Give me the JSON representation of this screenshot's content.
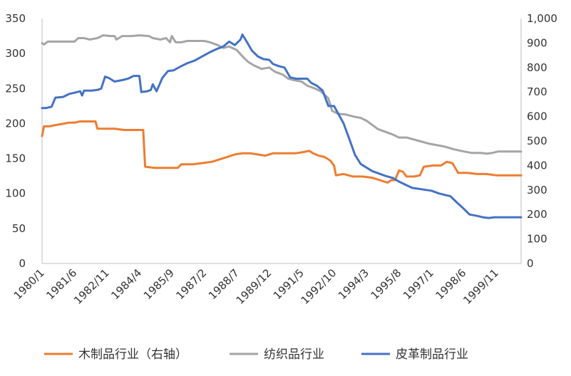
{
  "chart_data": {
    "type": "line",
    "x_tick_labels": [
      "1980/1",
      "1981/6",
      "1982/11",
      "1984/4",
      "1985/9",
      "1987/2",
      "1988/7",
      "1989/12",
      "1991/5",
      "1992/10",
      "1994/3",
      "1995/8",
      "1997/1",
      "1998/6",
      "1999/11"
    ],
    "x_range": [
      "1980/1",
      "2000/12"
    ],
    "left_axis": {
      "ticks": [
        0,
        50,
        100,
        150,
        200,
        250,
        300,
        350
      ],
      "ylim": [
        0,
        350
      ]
    },
    "right_axis": {
      "ticks": [
        "0",
        "100",
        "200",
        "300",
        "400",
        "500",
        "600",
        "700",
        "800",
        "900",
        "1,000"
      ],
      "ylim": [
        0,
        1000
      ]
    },
    "grid": false,
    "legend_position": "bottom",
    "series": [
      {
        "name": "木制品行业（右轴）",
        "axis": "right",
        "color": "#ED7D31",
        "points": [
          [
            "1980/1",
            520
          ],
          [
            "1980/2",
            560
          ],
          [
            "1980/5",
            560
          ],
          [
            "1980/8",
            565
          ],
          [
            "1980/12",
            570
          ],
          [
            "1981/3",
            575
          ],
          [
            "1981/6",
            575
          ],
          [
            "1981/9",
            580
          ],
          [
            "1982/1",
            580
          ],
          [
            "1982/5",
            580
          ],
          [
            "1982/6",
            550
          ],
          [
            "1982/10",
            550
          ],
          [
            "1983/3",
            550
          ],
          [
            "1983/8",
            545
          ],
          [
            "1984/4",
            545
          ],
          [
            "1984/6",
            545
          ],
          [
            "1984/7",
            395
          ],
          [
            "1984/12",
            390
          ],
          [
            "1985/6",
            390
          ],
          [
            "1985/12",
            390
          ],
          [
            "1986/2",
            405
          ],
          [
            "1986/8",
            405
          ],
          [
            "1987/1",
            410
          ],
          [
            "1987/6",
            415
          ],
          [
            "1987/10",
            425
          ],
          [
            "1988/2",
            435
          ],
          [
            "1988/6",
            445
          ],
          [
            "1988/10",
            450
          ],
          [
            "1989/2",
            450
          ],
          [
            "1989/6",
            445
          ],
          [
            "1989/10",
            440
          ],
          [
            "1990/2",
            450
          ],
          [
            "1990/6",
            450
          ],
          [
            "1990/10",
            450
          ],
          [
            "1991/2",
            450
          ],
          [
            "1991/6",
            455
          ],
          [
            "1991/9",
            460
          ],
          [
            "1991/11",
            450
          ],
          [
            "1992/2",
            440
          ],
          [
            "1992/5",
            435
          ],
          [
            "1992/8",
            420
          ],
          [
            "1992/10",
            400
          ],
          [
            "1992/11",
            360
          ],
          [
            "1993/3",
            365
          ],
          [
            "1993/8",
            355
          ],
          [
            "1994/1",
            355
          ],
          [
            "1994/6",
            350
          ],
          [
            "1994/10",
            340
          ],
          [
            "1995/2",
            330
          ],
          [
            "1995/4",
            340
          ],
          [
            "1995/6",
            340
          ],
          [
            "1995/8",
            380
          ],
          [
            "1995/10",
            375
          ],
          [
            "1995/12",
            355
          ],
          [
            "1996/4",
            355
          ],
          [
            "1996/7",
            360
          ],
          [
            "1996/9",
            395
          ],
          [
            "1997/2",
            400
          ],
          [
            "1997/6",
            400
          ],
          [
            "1997/9",
            415
          ],
          [
            "1997/12",
            410
          ],
          [
            "1998/3",
            370
          ],
          [
            "1998/8",
            370
          ],
          [
            "1999/1",
            365
          ],
          [
            "1999/6",
            365
          ],
          [
            "1999/11",
            360
          ],
          [
            "2000/6",
            360
          ],
          [
            "2000/12",
            360
          ]
        ]
      },
      {
        "name": "纺织品行业",
        "axis": "left",
        "color": "#A5A5A5",
        "points": [
          [
            "1980/1",
            315
          ],
          [
            "1980/2",
            313
          ],
          [
            "1980/4",
            317
          ],
          [
            "1980/9",
            317
          ],
          [
            "1981/3",
            317
          ],
          [
            "1981/6",
            317
          ],
          [
            "1981/8",
            322
          ],
          [
            "1981/11",
            322
          ],
          [
            "1982/2",
            320
          ],
          [
            "1982/6",
            322
          ],
          [
            "1982/9",
            326
          ],
          [
            "1983/1",
            325
          ],
          [
            "1983/3",
            325
          ],
          [
            "1983/4",
            320
          ],
          [
            "1983/7",
            325
          ],
          [
            "1983/12",
            325
          ],
          [
            "1984/4",
            326
          ],
          [
            "1984/9",
            325
          ],
          [
            "1984/11",
            322
          ],
          [
            "1985/3",
            320
          ],
          [
            "1985/6",
            322
          ],
          [
            "1985/8",
            316
          ],
          [
            "1985/9",
            325
          ],
          [
            "1985/11",
            316
          ],
          [
            "1986/2",
            316
          ],
          [
            "1986/5",
            318
          ],
          [
            "1986/11",
            318
          ],
          [
            "1987/2",
            318
          ],
          [
            "1987/5",
            316
          ],
          [
            "1987/9",
            312
          ],
          [
            "1987/12",
            308
          ],
          [
            "1988/3",
            310
          ],
          [
            "1988/7",
            305
          ],
          [
            "1988/10",
            296
          ],
          [
            "1989/1",
            288
          ],
          [
            "1989/4",
            283
          ],
          [
            "1989/8",
            278
          ],
          [
            "1989/12",
            280
          ],
          [
            "1990/3",
            274
          ],
          [
            "1990/7",
            270
          ],
          [
            "1990/10",
            264
          ],
          [
            "1991/1",
            262
          ],
          [
            "1991/5",
            260
          ],
          [
            "1991/8",
            254
          ],
          [
            "1991/12",
            250
          ],
          [
            "1992/3",
            246
          ],
          [
            "1992/7",
            236
          ],
          [
            "1992/9",
            218
          ],
          [
            "1992/12",
            214
          ],
          [
            "1993/4",
            213
          ],
          [
            "1993/8",
            210
          ],
          [
            "1993/12",
            208
          ],
          [
            "1994/3",
            204
          ],
          [
            "1994/6",
            198
          ],
          [
            "1994/9",
            192
          ],
          [
            "1995/1",
            188
          ],
          [
            "1995/5",
            184
          ],
          [
            "1995/8",
            180
          ],
          [
            "1995/12",
            180
          ],
          [
            "1996/4",
            177
          ],
          [
            "1996/8",
            174
          ],
          [
            "1996/12",
            171
          ],
          [
            "1997/4",
            169
          ],
          [
            "1997/8",
            167
          ],
          [
            "1998/1",
            163
          ],
          [
            "1998/6",
            160
          ],
          [
            "1998/10",
            158
          ],
          [
            "1999/3",
            158
          ],
          [
            "1999/6",
            157
          ],
          [
            "1999/9",
            158
          ],
          [
            "1999/12",
            160
          ],
          [
            "2000/6",
            160
          ],
          [
            "2000/12",
            160
          ]
        ]
      },
      {
        "name": "皮革制品行业",
        "axis": "left",
        "color": "#4472C4",
        "points": [
          [
            "1980/1",
            222
          ],
          [
            "1980/3",
            222
          ],
          [
            "1980/6",
            224
          ],
          [
            "1980/8",
            237
          ],
          [
            "1980/12",
            238
          ],
          [
            "1981/3",
            242
          ],
          [
            "1981/6",
            244
          ],
          [
            "1981/9",
            246
          ],
          [
            "1981/10",
            240
          ],
          [
            "1981/11",
            247
          ],
          [
            "1982/3",
            247
          ],
          [
            "1982/6",
            248
          ],
          [
            "1982/8",
            250
          ],
          [
            "1982/10",
            267
          ],
          [
            "1982/12",
            265
          ],
          [
            "1983/3",
            260
          ],
          [
            "1983/7",
            262
          ],
          [
            "1983/10",
            264
          ],
          [
            "1984/1",
            268
          ],
          [
            "1984/4",
            268
          ],
          [
            "1984/5",
            245
          ],
          [
            "1984/8",
            246
          ],
          [
            "1984/10",
            248
          ],
          [
            "1984/11",
            256
          ],
          [
            "1985/1",
            246
          ],
          [
            "1985/4",
            265
          ],
          [
            "1985/7",
            275
          ],
          [
            "1985/10",
            276
          ],
          [
            "1986/2",
            282
          ],
          [
            "1986/5",
            286
          ],
          [
            "1986/9",
            290
          ],
          [
            "1987/1",
            296
          ],
          [
            "1987/5",
            302
          ],
          [
            "1987/9",
            307
          ],
          [
            "1987/12",
            310
          ],
          [
            "1988/3",
            317
          ],
          [
            "1988/6",
            312
          ],
          [
            "1988/9",
            320
          ],
          [
            "1988/10",
            327
          ],
          [
            "1988/12",
            318
          ],
          [
            "1989/3",
            304
          ],
          [
            "1989/6",
            296
          ],
          [
            "1989/9",
            292
          ],
          [
            "1989/12",
            291
          ],
          [
            "1990/2",
            285
          ],
          [
            "1990/5",
            282
          ],
          [
            "1990/8",
            280
          ],
          [
            "1990/11",
            266
          ],
          [
            "1991/2",
            264
          ],
          [
            "1991/5",
            264
          ],
          [
            "1991/8",
            264
          ],
          [
            "1991/10",
            258
          ],
          [
            "1992/1",
            254
          ],
          [
            "1992/4",
            247
          ],
          [
            "1992/7",
            225
          ],
          [
            "1992/10",
            225
          ],
          [
            "1993/1",
            210
          ],
          [
            "1993/3",
            200
          ],
          [
            "1993/6",
            178
          ],
          [
            "1993/9",
            155
          ],
          [
            "1993/12",
            142
          ],
          [
            "1994/3",
            137
          ],
          [
            "1994/6",
            132
          ],
          [
            "1994/9",
            129
          ],
          [
            "1995/1",
            125
          ],
          [
            "1995/5",
            122
          ],
          [
            "1995/8",
            117
          ],
          [
            "1995/11",
            113
          ],
          [
            "1996/3",
            108
          ],
          [
            "1996/8",
            106
          ],
          [
            "1997/1",
            104
          ],
          [
            "1997/5",
            100
          ],
          [
            "1997/8",
            98
          ],
          [
            "1997/11",
            96
          ],
          [
            "1998/2",
            88
          ],
          [
            "1998/6",
            78
          ],
          [
            "1998/9",
            70
          ],
          [
            "1999/1",
            68
          ],
          [
            "1999/4",
            66
          ],
          [
            "1999/7",
            65
          ],
          [
            "1999/10",
            66
          ],
          [
            "2000/6",
            66
          ],
          [
            "2000/12",
            66
          ]
        ]
      }
    ]
  }
}
